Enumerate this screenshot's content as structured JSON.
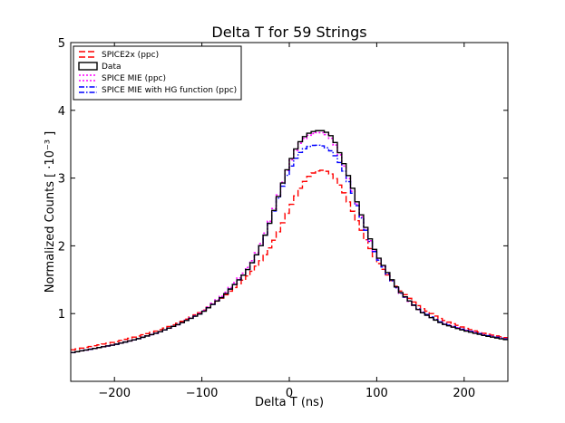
{
  "chart_data": {
    "type": "line",
    "title": "Delta T for 59 Strings",
    "xlabel": "Delta T (ns)",
    "ylabel": "Normalized Counts [ ·10⁻³ ]",
    "xlim": [
      -250,
      250
    ],
    "ylim": [
      0,
      5
    ],
    "x_ticks": [
      -200,
      -100,
      0,
      100,
      200
    ],
    "x_tick_labels": [
      "−200",
      "−100",
      "0",
      "100",
      "200"
    ],
    "y_ticks": [
      1,
      2,
      3,
      4,
      5
    ],
    "y_tick_labels": [
      "1",
      "2",
      "3",
      "4",
      "5"
    ],
    "legend_position": "top-left",
    "grid": false,
    "x": [
      -250,
      -225,
      -200,
      -175,
      -150,
      -125,
      -100,
      -75,
      -50,
      -40,
      -30,
      -20,
      -10,
      0,
      10,
      20,
      30,
      40,
      50,
      60,
      70,
      80,
      90,
      100,
      125,
      150,
      175,
      200,
      225,
      250
    ],
    "series": [
      {
        "name": "SPICE2x (ppc)",
        "color": "#ff0000",
        "style": "dashed",
        "values": [
          0.46,
          0.52,
          0.58,
          0.66,
          0.75,
          0.87,
          1.03,
          1.25,
          1.52,
          1.66,
          1.82,
          2.02,
          2.27,
          2.55,
          2.8,
          3.0,
          3.1,
          3.12,
          3.04,
          2.85,
          2.58,
          2.3,
          2.02,
          1.78,
          1.36,
          1.09,
          0.91,
          0.79,
          0.7,
          0.64
        ]
      },
      {
        "name": "Data",
        "color": "#000000",
        "style": "solid",
        "values": [
          0.42,
          0.48,
          0.54,
          0.62,
          0.72,
          0.85,
          1.01,
          1.26,
          1.6,
          1.8,
          2.07,
          2.42,
          2.83,
          3.22,
          3.5,
          3.65,
          3.7,
          3.7,
          3.6,
          3.3,
          2.95,
          2.55,
          2.18,
          1.87,
          1.34,
          1.03,
          0.85,
          0.75,
          0.67,
          0.61
        ]
      },
      {
        "name": "SPICE MIE (ppc)",
        "color": "#ff00ff",
        "style": "dotted",
        "values": [
          0.42,
          0.48,
          0.54,
          0.62,
          0.72,
          0.85,
          1.02,
          1.28,
          1.63,
          1.83,
          2.1,
          2.45,
          2.85,
          3.2,
          3.48,
          3.62,
          3.67,
          3.67,
          3.56,
          3.27,
          2.9,
          2.52,
          2.15,
          1.85,
          1.33,
          1.03,
          0.86,
          0.76,
          0.68,
          0.62
        ]
      },
      {
        "name": "SPICE MIE with HG function (ppc)",
        "color": "#0000ff",
        "style": "dashdot",
        "values": [
          0.42,
          0.48,
          0.54,
          0.62,
          0.72,
          0.85,
          1.01,
          1.26,
          1.6,
          1.8,
          2.07,
          2.42,
          2.8,
          3.12,
          3.35,
          3.46,
          3.49,
          3.47,
          3.38,
          3.18,
          2.87,
          2.5,
          2.14,
          1.84,
          1.33,
          1.04,
          0.86,
          0.76,
          0.68,
          0.62
        ]
      }
    ]
  }
}
